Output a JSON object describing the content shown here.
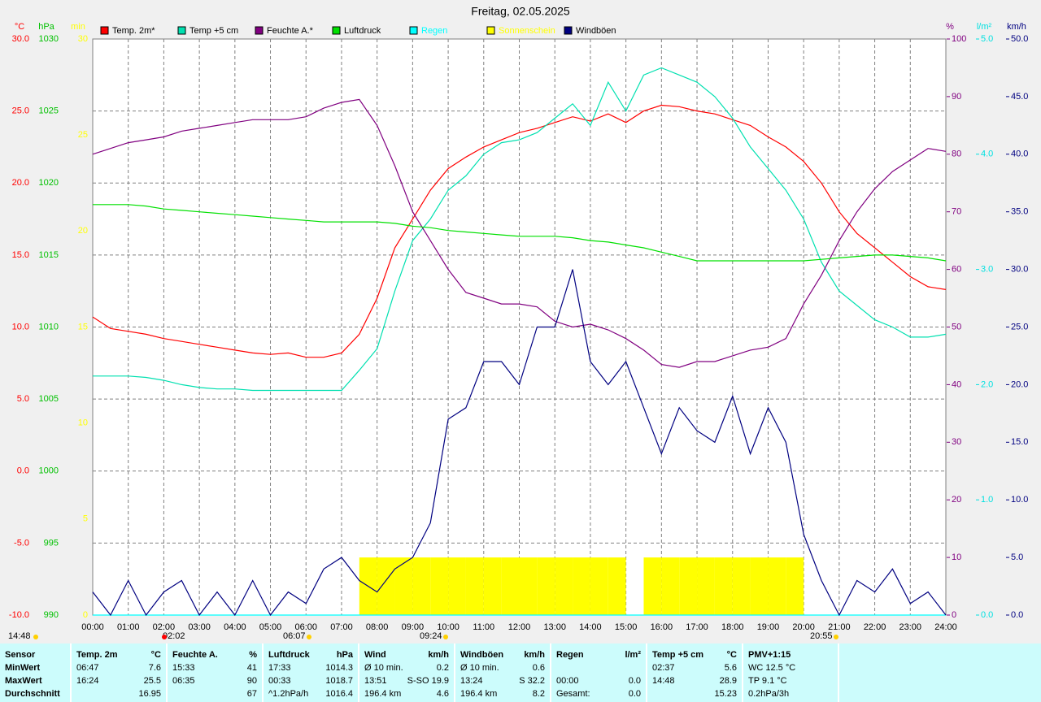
{
  "chart_data": {
    "type": "line",
    "title": "Freitag, 02.05.2025",
    "x": [
      0,
      0.5,
      1,
      1.5,
      2,
      2.5,
      3,
      3.5,
      4,
      4.5,
      5,
      5.5,
      6,
      6.5,
      7,
      7.5,
      8,
      8.5,
      9,
      9.5,
      10,
      10.5,
      11,
      11.5,
      12,
      12.5,
      13,
      13.5,
      14,
      14.5,
      15,
      15.5,
      16,
      16.5,
      17,
      17.5,
      18,
      18.5,
      19,
      19.5,
      20,
      20.5,
      21,
      21.5,
      22,
      22.5,
      23,
      23.5,
      24
    ],
    "xlim": [
      0,
      24
    ],
    "xticks": [
      {
        "value": 0,
        "label": "00:00"
      },
      {
        "value": 1,
        "label": "01:00"
      },
      {
        "value": 2,
        "label": "02:00"
      },
      {
        "value": 3,
        "label": "03:00"
      },
      {
        "value": 4,
        "label": "04:00"
      },
      {
        "value": 5,
        "label": "05:00"
      },
      {
        "value": 6,
        "label": "06:00"
      },
      {
        "value": 7,
        "label": "07:00"
      },
      {
        "value": 8,
        "label": "08:00"
      },
      {
        "value": 9,
        "label": "09:00"
      },
      {
        "value": 10,
        "label": "10:00"
      },
      {
        "value": 11,
        "label": "11:00"
      },
      {
        "value": 12,
        "label": "12:00"
      },
      {
        "value": 13,
        "label": "13:00"
      },
      {
        "value": 14,
        "label": "14:00"
      },
      {
        "value": 15,
        "label": "15:00"
      },
      {
        "value": 16,
        "label": "16:00"
      },
      {
        "value": 17,
        "label": "17:00"
      },
      {
        "value": 18,
        "label": "18:00"
      },
      {
        "value": 19,
        "label": "19:00"
      },
      {
        "value": 20,
        "label": "20:00"
      },
      {
        "value": 21,
        "label": "21:00"
      },
      {
        "value": 22,
        "label": "22:00"
      },
      {
        "value": 23,
        "label": "23:00"
      },
      {
        "value": 24,
        "label": "24:00"
      }
    ],
    "grid": true,
    "axes": [
      {
        "label": "°C",
        "color": "#ff0000",
        "lim": [
          -10,
          30
        ],
        "ticks": [
          {
            "value": -10,
            "label": "-10.0"
          },
          {
            "value": -5,
            "label": "-5.0"
          },
          {
            "value": 0,
            "label": "0.0"
          },
          {
            "value": 5,
            "label": "5.0"
          },
          {
            "value": 10,
            "label": "10.0"
          },
          {
            "value": 15,
            "label": "15.0"
          },
          {
            "value": 20,
            "label": "20.0"
          },
          {
            "value": 25,
            "label": "25.0"
          },
          {
            "value": 30,
            "label": "30.0"
          }
        ]
      },
      {
        "label": "hPa",
        "color": "#00c000",
        "lim": [
          990,
          1030
        ],
        "ticks": [
          990,
          995,
          1000,
          1005,
          1010,
          1015,
          1020,
          1025,
          1030
        ]
      },
      {
        "label": "min",
        "color": "#ffff00",
        "lim": [
          0,
          30
        ],
        "ticks": [
          0,
          5,
          10,
          15,
          20,
          25,
          30
        ]
      },
      {
        "label": "%",
        "color": "#800080",
        "lim": [
          0,
          100
        ],
        "ticks": [
          0,
          10,
          20,
          30,
          40,
          50,
          60,
          70,
          80,
          90,
          100
        ]
      },
      {
        "label": "l/m²",
        "color": "#00e0e0",
        "lim": [
          0,
          5
        ],
        "ticks": [
          {
            "value": 0,
            "label": "0.0"
          },
          {
            "value": 1,
            "label": "1.0"
          },
          {
            "value": 2,
            "label": "2.0"
          },
          {
            "value": 3,
            "label": "3.0"
          },
          {
            "value": 4,
            "label": "4.0"
          },
          {
            "value": 5,
            "label": "5.0"
          }
        ]
      },
      {
        "label": "km/h",
        "color": "#000080",
        "lim": [
          0,
          50
        ],
        "ticks": [
          {
            "value": 0,
            "label": "0.0"
          },
          {
            "value": 5,
            "label": "5.0"
          },
          {
            "value": 10,
            "label": "10.0"
          },
          {
            "value": 15,
            "label": "15.0"
          },
          {
            "value": 20,
            "label": "20.0"
          },
          {
            "value": 25,
            "label": "25.0"
          },
          {
            "value": 30,
            "label": "30.0"
          },
          {
            "value": 35,
            "label": "35.0"
          },
          {
            "value": 40,
            "label": "40.0"
          },
          {
            "value": 45,
            "label": "45.0"
          },
          {
            "value": 50,
            "label": "50.0"
          }
        ]
      }
    ],
    "series": [
      {
        "name": "Temp. 2m*",
        "color": "#ff0000",
        "axis": 0,
        "values": [
          10.7,
          9.9,
          9.7,
          9.5,
          9.2,
          9.0,
          8.8,
          8.6,
          8.4,
          8.2,
          8.1,
          8.2,
          7.9,
          7.9,
          8.2,
          9.5,
          12.0,
          15.5,
          17.5,
          19.5,
          21.0,
          21.8,
          22.5,
          23.0,
          23.5,
          23.8,
          24.2,
          24.6,
          24.3,
          24.8,
          24.2,
          25.0,
          25.4,
          25.3,
          25.0,
          24.8,
          24.4,
          24.0,
          23.2,
          22.5,
          21.5,
          20.0,
          18.0,
          16.5,
          15.5,
          14.5,
          13.5,
          12.8,
          12.6
        ]
      },
      {
        "name": "Temp +5 cm",
        "color": "#00e0b0",
        "axis": 0,
        "values": [
          6.6,
          6.6,
          6.6,
          6.5,
          6.3,
          6.0,
          5.8,
          5.7,
          5.7,
          5.6,
          5.6,
          5.6,
          5.6,
          5.6,
          5.6,
          7.0,
          8.5,
          12.5,
          16.0,
          17.5,
          19.5,
          20.5,
          22.0,
          22.8,
          23.0,
          23.5,
          24.5,
          25.5,
          24.0,
          27.0,
          25.0,
          27.5,
          28.0,
          27.5,
          27.0,
          26.0,
          24.5,
          22.5,
          21.0,
          19.5,
          17.5,
          14.5,
          12.5,
          11.5,
          10.5,
          10.0,
          9.3,
          9.3,
          9.5
        ]
      },
      {
        "name": "Feuchte A.*",
        "color": "#800080",
        "axis": 3,
        "values": [
          80,
          81,
          82,
          82.5,
          83,
          84,
          84.5,
          85,
          85.5,
          86,
          86,
          86,
          86.5,
          88,
          89,
          89.5,
          85,
          78,
          70,
          65,
          60,
          56,
          55,
          54,
          54,
          53.5,
          51,
          50,
          50.5,
          49.5,
          48,
          46,
          43.5,
          43,
          44,
          44,
          45,
          46,
          46.5,
          48,
          54,
          59,
          65,
          70,
          74,
          77,
          79,
          81,
          80.5
        ]
      },
      {
        "name": "Luftdruck",
        "color": "#00e000",
        "axis": 1,
        "values": [
          1018.5,
          1018.5,
          1018.5,
          1018.4,
          1018.2,
          1018.1,
          1018.0,
          1017.9,
          1017.8,
          1017.7,
          1017.6,
          1017.5,
          1017.4,
          1017.3,
          1017.3,
          1017.3,
          1017.3,
          1017.2,
          1017.0,
          1016.9,
          1016.7,
          1016.6,
          1016.5,
          1016.4,
          1016.3,
          1016.3,
          1016.3,
          1016.2,
          1016.0,
          1015.9,
          1015.7,
          1015.5,
          1015.2,
          1014.9,
          1014.6,
          1014.6,
          1014.6,
          1014.6,
          1014.6,
          1014.6,
          1014.6,
          1014.7,
          1014.8,
          1014.9,
          1015.0,
          1015.0,
          1014.9,
          1014.8,
          1014.6
        ]
      },
      {
        "name": "Regen",
        "color": "#00ffff",
        "axis": 4,
        "values": [
          0,
          0,
          0,
          0,
          0,
          0,
          0,
          0,
          0,
          0,
          0,
          0,
          0,
          0,
          0,
          0,
          0,
          0,
          0,
          0,
          0,
          0,
          0,
          0,
          0,
          0,
          0,
          0,
          0,
          0,
          0,
          0,
          0,
          0,
          0,
          0,
          0,
          0,
          0,
          0,
          0,
          0,
          0,
          0,
          0,
          0,
          0,
          0,
          0
        ]
      },
      {
        "name": "Sonnenschein",
        "color": "#ffff00",
        "axis": 2,
        "type": "bar",
        "values": [
          0,
          0,
          0,
          0,
          0,
          0,
          0,
          0,
          0,
          0,
          0,
          0,
          0,
          0,
          0,
          3,
          3,
          3,
          3,
          3,
          3,
          3,
          3,
          3,
          3,
          3,
          3,
          3,
          3,
          3,
          0,
          3,
          3,
          3,
          3,
          3,
          3,
          3,
          3,
          3,
          0,
          0,
          0,
          0,
          0,
          0,
          0,
          0,
          0
        ]
      },
      {
        "name": "Windböen",
        "color": "#000080",
        "axis": 5,
        "values": [
          2,
          0,
          3,
          0,
          2,
          3,
          0,
          2,
          0,
          3,
          0,
          2,
          1,
          4,
          5,
          3,
          2,
          4,
          5,
          8,
          17,
          18,
          22,
          22,
          20,
          25,
          25,
          30,
          22,
          20,
          22,
          18,
          14,
          18,
          16,
          15,
          19,
          14,
          18,
          15,
          7,
          3,
          0,
          3,
          2,
          4,
          1,
          2,
          0
        ]
      }
    ],
    "annotations": [
      "14:48",
      "02:02",
      "06:07",
      "09:24",
      "20:55"
    ]
  },
  "stats": {
    "columns": [
      {
        "name": "Sensor",
        "rows": [
          [
            "MinWert"
          ],
          [
            "MaxWert"
          ],
          [
            "Durchschnitt"
          ]
        ]
      },
      {
        "name": "Temp. 2m",
        "unit": "°C",
        "rows": [
          [
            "06:47",
            "7.6"
          ],
          [
            "16:24",
            "25.5"
          ],
          [
            "16.95"
          ]
        ]
      },
      {
        "name": "Feuchte A.",
        "unit": "%",
        "rows": [
          [
            "15:33",
            "41"
          ],
          [
            "06:35",
            "90"
          ],
          [
            "67"
          ]
        ]
      },
      {
        "name": "Luftdruck",
        "unit": "hPa",
        "rows": [
          [
            "17:33",
            "1014.3"
          ],
          [
            "00:33",
            "1018.7"
          ],
          [
            "^1.2hPa/h",
            "1016.4"
          ]
        ]
      },
      {
        "name": "Wind",
        "unit": "km/h",
        "rows": [
          [
            "Ø 10 min.",
            "0.2"
          ],
          [
            "13:51",
            "S-SO 19.9"
          ],
          [
            "196.4 km",
            "4.6"
          ]
        ]
      },
      {
        "name": "Windböen",
        "unit": "km/h",
        "rows": [
          [
            "Ø 10 min.",
            "0.6"
          ],
          [
            "13:24",
            "S 32.2"
          ],
          [
            "196.4 km",
            "8.2"
          ]
        ]
      },
      {
        "name": "Regen",
        "unit": "l/m²",
        "rows": [
          [],
          [
            "00:00",
            "0.0"
          ],
          [
            "Gesamt:",
            "0.0"
          ]
        ]
      },
      {
        "name": "Temp +5 cm",
        "unit": "°C",
        "rows": [
          [
            "02:37",
            "5.6"
          ],
          [
            "14:48",
            "28.9"
          ],
          [
            "15.23"
          ]
        ]
      },
      {
        "name": "PMV+1:15",
        "rows": [
          [
            "WC 12.5 °C"
          ],
          [
            "TP 9.1 °C"
          ],
          [
            "0.2hPa/3h"
          ]
        ]
      }
    ]
  }
}
